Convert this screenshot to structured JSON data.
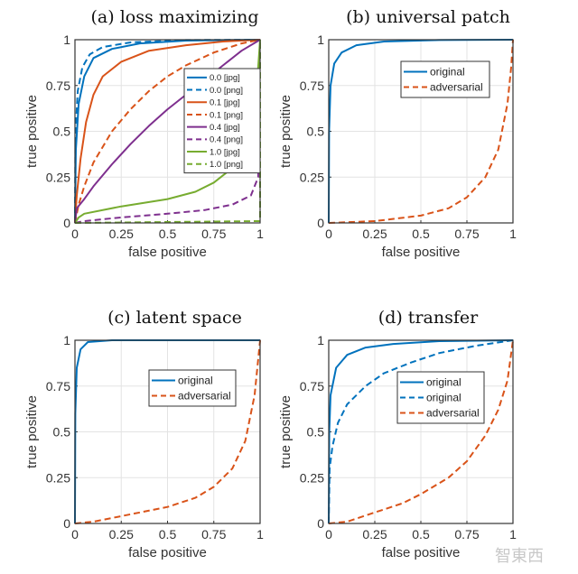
{
  "colors": {
    "blue": "#0072BD",
    "orange": "#D95319",
    "purple": "#7E2F8E",
    "green": "#77AC30"
  },
  "watermark": "智東西",
  "chart_data": [
    {
      "type": "line",
      "title": "(a) loss maximizing",
      "xlabel": "false positive",
      "ylabel": "true positive",
      "xlim": [
        0,
        1
      ],
      "ylim": [
        0,
        1
      ],
      "xticks": [
        "0",
        "0.25",
        "0.5",
        "0.75",
        "1"
      ],
      "yticks": [
        "0",
        "0.25",
        "0.5",
        "0.75",
        "1"
      ],
      "grid": true,
      "legend": "center-right",
      "series": [
        {
          "name": "0.0 [jpg]",
          "color": "#0072BD",
          "dash": false,
          "points": [
            [
              0,
              0
            ],
            [
              0.005,
              0.4
            ],
            [
              0.02,
              0.65
            ],
            [
              0.05,
              0.8
            ],
            [
              0.1,
              0.9
            ],
            [
              0.2,
              0.95
            ],
            [
              0.35,
              0.98
            ],
            [
              0.6,
              0.995
            ],
            [
              1,
              1
            ]
          ]
        },
        {
          "name": "0.0 [png]",
          "color": "#0072BD",
          "dash": true,
          "points": [
            [
              0,
              0
            ],
            [
              0.003,
              0.5
            ],
            [
              0.015,
              0.72
            ],
            [
              0.04,
              0.85
            ],
            [
              0.08,
              0.92
            ],
            [
              0.15,
              0.96
            ],
            [
              0.3,
              0.985
            ],
            [
              0.6,
              0.998
            ],
            [
              1,
              1
            ]
          ]
        },
        {
          "name": "0.1 [jpg]",
          "color": "#D95319",
          "dash": false,
          "points": [
            [
              0,
              0
            ],
            [
              0.01,
              0.15
            ],
            [
              0.03,
              0.35
            ],
            [
              0.06,
              0.55
            ],
            [
              0.1,
              0.7
            ],
            [
              0.15,
              0.8
            ],
            [
              0.25,
              0.88
            ],
            [
              0.4,
              0.94
            ],
            [
              0.6,
              0.97
            ],
            [
              0.8,
              0.99
            ],
            [
              1,
              1
            ]
          ]
        },
        {
          "name": "0.1 [png]",
          "color": "#D95319",
          "dash": true,
          "points": [
            [
              0,
              0
            ],
            [
              0.02,
              0.1
            ],
            [
              0.05,
              0.2
            ],
            [
              0.1,
              0.33
            ],
            [
              0.2,
              0.5
            ],
            [
              0.3,
              0.62
            ],
            [
              0.4,
              0.72
            ],
            [
              0.5,
              0.8
            ],
            [
              0.6,
              0.86
            ],
            [
              0.75,
              0.93
            ],
            [
              0.9,
              0.98
            ],
            [
              1,
              1
            ]
          ]
        },
        {
          "name": "0.4 [jpg]",
          "color": "#7E2F8E",
          "dash": false,
          "points": [
            [
              0,
              0
            ],
            [
              0.01,
              0.08
            ],
            [
              0.05,
              0.13
            ],
            [
              0.1,
              0.2
            ],
            [
              0.2,
              0.32
            ],
            [
              0.3,
              0.43
            ],
            [
              0.4,
              0.53
            ],
            [
              0.5,
              0.62
            ],
            [
              0.6,
              0.7
            ],
            [
              0.7,
              0.78
            ],
            [
              0.8,
              0.86
            ],
            [
              0.9,
              0.94
            ],
            [
              1,
              1
            ]
          ]
        },
        {
          "name": "0.4 [png]",
          "color": "#7E2F8E",
          "dash": true,
          "points": [
            [
              0,
              0
            ],
            [
              0.05,
              0.01
            ],
            [
              0.25,
              0.03
            ],
            [
              0.5,
              0.05
            ],
            [
              0.7,
              0.07
            ],
            [
              0.85,
              0.1
            ],
            [
              0.95,
              0.15
            ],
            [
              0.99,
              0.25
            ],
            [
              1,
              1
            ]
          ]
        },
        {
          "name": "1.0 [jpg]",
          "color": "#77AC30",
          "dash": false,
          "points": [
            [
              0,
              0
            ],
            [
              0.02,
              0.03
            ],
            [
              0.05,
              0.05
            ],
            [
              0.25,
              0.09
            ],
            [
              0.5,
              0.13
            ],
            [
              0.65,
              0.17
            ],
            [
              0.75,
              0.22
            ],
            [
              0.85,
              0.3
            ],
            [
              0.92,
              0.4
            ],
            [
              0.97,
              0.6
            ],
            [
              0.99,
              0.85
            ],
            [
              1,
              1
            ]
          ]
        },
        {
          "name": "1.0 [png]",
          "color": "#77AC30",
          "dash": true,
          "points": [
            [
              0,
              0
            ],
            [
              0.99,
              0.01
            ],
            [
              1,
              0.01
            ],
            [
              1,
              1
            ]
          ]
        }
      ]
    },
    {
      "type": "line",
      "title": "(b) universal patch",
      "xlabel": "false positive",
      "ylabel": "true positive",
      "xlim": [
        0,
        1
      ],
      "ylim": [
        0,
        1
      ],
      "xticks": [
        "0",
        "0.25",
        "0.5",
        "0.75",
        "1"
      ],
      "yticks": [
        "0",
        "0.25",
        "0.5",
        "0.75",
        "1"
      ],
      "grid": true,
      "legend": "top-center",
      "series": [
        {
          "name": "original",
          "color": "#0072BD",
          "dash": false,
          "points": [
            [
              0,
              0
            ],
            [
              0.002,
              0.5
            ],
            [
              0.01,
              0.75
            ],
            [
              0.03,
              0.87
            ],
            [
              0.07,
              0.93
            ],
            [
              0.15,
              0.97
            ],
            [
              0.3,
              0.99
            ],
            [
              0.6,
              0.998
            ],
            [
              1,
              1
            ]
          ]
        },
        {
          "name": "adversarial",
          "color": "#D95319",
          "dash": true,
          "points": [
            [
              0,
              0
            ],
            [
              0.25,
              0.01
            ],
            [
              0.5,
              0.04
            ],
            [
              0.65,
              0.08
            ],
            [
              0.75,
              0.14
            ],
            [
              0.85,
              0.25
            ],
            [
              0.92,
              0.4
            ],
            [
              0.97,
              0.65
            ],
            [
              0.99,
              0.85
            ],
            [
              1,
              1
            ]
          ]
        }
      ]
    },
    {
      "type": "line",
      "title": "(c) latent space",
      "xlabel": "false positive",
      "ylabel": "true positive",
      "xlim": [
        0,
        1
      ],
      "ylim": [
        0,
        1
      ],
      "xticks": [
        "0",
        "0.25",
        "0.5",
        "0.75",
        "1"
      ],
      "yticks": [
        "0",
        "0.25",
        "0.5",
        "0.75",
        "1"
      ],
      "grid": true,
      "legend": "top-center",
      "series": [
        {
          "name": "original",
          "color": "#0072BD",
          "dash": false,
          "points": [
            [
              0,
              0
            ],
            [
              0.002,
              0.6
            ],
            [
              0.01,
              0.85
            ],
            [
              0.03,
              0.95
            ],
            [
              0.07,
              0.99
            ],
            [
              0.2,
              1
            ],
            [
              1,
              1
            ]
          ]
        },
        {
          "name": "adversarial",
          "color": "#D95319",
          "dash": true,
          "points": [
            [
              0,
              0
            ],
            [
              0.1,
              0.01
            ],
            [
              0.25,
              0.04
            ],
            [
              0.5,
              0.09
            ],
            [
              0.65,
              0.14
            ],
            [
              0.75,
              0.2
            ],
            [
              0.85,
              0.3
            ],
            [
              0.92,
              0.45
            ],
            [
              0.97,
              0.7
            ],
            [
              1,
              1
            ]
          ]
        }
      ]
    },
    {
      "type": "line",
      "title": "(d) transfer",
      "xlabel": "false positive",
      "ylabel": "true positive",
      "xlim": [
        0,
        1
      ],
      "ylim": [
        0,
        1
      ],
      "xticks": [
        "0",
        "0.25",
        "0.5",
        "0.75",
        "1"
      ],
      "yticks": [
        "0",
        "0.25",
        "0.5",
        "0.75",
        "1"
      ],
      "grid": true,
      "legend": "top-center",
      "series": [
        {
          "name": "original",
          "color": "#0072BD",
          "dash": false,
          "points": [
            [
              0,
              0
            ],
            [
              0.003,
              0.5
            ],
            [
              0.01,
              0.7
            ],
            [
              0.04,
              0.85
            ],
            [
              0.1,
              0.92
            ],
            [
              0.2,
              0.96
            ],
            [
              0.35,
              0.98
            ],
            [
              0.6,
              0.995
            ],
            [
              1,
              1
            ]
          ]
        },
        {
          "name": "original",
          "color": "#0072BD",
          "dash": true,
          "points": [
            [
              0,
              0
            ],
            [
              0.005,
              0.3
            ],
            [
              0.02,
              0.42
            ],
            [
              0.05,
              0.55
            ],
            [
              0.1,
              0.65
            ],
            [
              0.2,
              0.75
            ],
            [
              0.3,
              0.82
            ],
            [
              0.45,
              0.88
            ],
            [
              0.6,
              0.93
            ],
            [
              0.8,
              0.97
            ],
            [
              1,
              1
            ]
          ]
        },
        {
          "name": "adversarial",
          "color": "#D95319",
          "dash": true,
          "points": [
            [
              0,
              0
            ],
            [
              0.05,
              0.005
            ],
            [
              0.1,
              0.01
            ],
            [
              0.25,
              0.06
            ],
            [
              0.4,
              0.11
            ],
            [
              0.5,
              0.16
            ],
            [
              0.65,
              0.25
            ],
            [
              0.75,
              0.34
            ],
            [
              0.85,
              0.48
            ],
            [
              0.92,
              0.62
            ],
            [
              0.97,
              0.78
            ],
            [
              1,
              1
            ]
          ]
        }
      ]
    }
  ]
}
